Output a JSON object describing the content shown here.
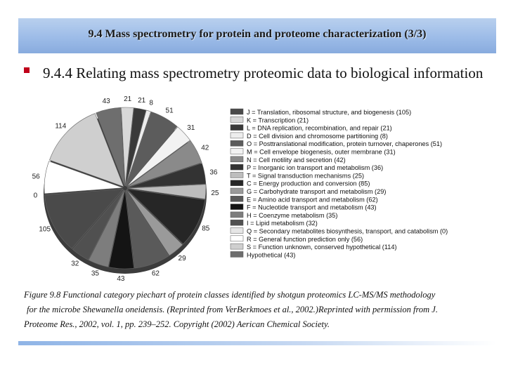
{
  "slide": {
    "title": "9.4 Mass spectrometry for  protein and proteome characterization (3/3)",
    "bullet": "9.4.4 Relating mass spectrometry proteomic data to biological information",
    "caption": {
      "line1": "Figure 9.8 Functional category piechart of protein classes identified by shotgun proteomics LC-MS/MS methodology",
      "line2": "for the microbe Shewanella oneidensis. (Reprinted from VerBerkmoes et al., 2002.)Reprinted with permission from J.",
      "line3": "Proteome Res., 2002, vol. 1, pp. 239–252. Copyright (2002) Aerican  Chemical Society."
    },
    "accent_color": "#c0001a"
  },
  "chart_data": {
    "type": "pie",
    "title": "",
    "legend_position": "right",
    "slices": [
      {
        "label": "J = Translation, ribosomal structure, and biogenesis (105)",
        "value": 105,
        "color": "#4a4a4a"
      },
      {
        "label": "K = Transcription (21)",
        "value": 21,
        "color": "#d8d8d8"
      },
      {
        "label": "L = DNA replication, recombination, and repair (21)",
        "value": 21,
        "color": "#3a3a3a"
      },
      {
        "label": "D = Cell division and chromosome partitioning (8)",
        "value": 8,
        "color": "#ededed"
      },
      {
        "label": "O = Posttranslational modification, protein turnover, chaperones (51)",
        "value": 51,
        "color": "#5c5c5c"
      },
      {
        "label": "M = Cell envelope biogenesis, outer membrane (31)",
        "value": 31,
        "color": "#f2f2f2"
      },
      {
        "label": "N = Cell motility and secretion (42)",
        "value": 42,
        "color": "#8a8a8a"
      },
      {
        "label": "P = Inorganic ion transport and metabolism (36)",
        "value": 36,
        "color": "#333333"
      },
      {
        "label": "T = Signal transduction mechanisms (25)",
        "value": 25,
        "color": "#bdbdbd"
      },
      {
        "label": "C = Energy production and conversion (85)",
        "value": 85,
        "color": "#262626"
      },
      {
        "label": "G = Carbohydrate transport and metabolism (29)",
        "value": 29,
        "color": "#9a9a9a"
      },
      {
        "label": "E = Amino acid transport and metabolism (62)",
        "value": 62,
        "color": "#5a5a5a"
      },
      {
        "label": "F = Nucleotide transport and metabolism (43)",
        "value": 43,
        "color": "#141414"
      },
      {
        "label": "H = Coenzyme metabolism (35)",
        "value": 35,
        "color": "#7d7d7d"
      },
      {
        "label": "I = Lipid metabolism (32)",
        "value": 32,
        "color": "#505050"
      },
      {
        "label": "Q = Secondary metabolites biosynthesis, transport, and catabolism (0)",
        "value": 0,
        "color": "#e6e6e6"
      },
      {
        "label": "R = General function prediction only (56)",
        "value": 56,
        "color": "#ffffff"
      },
      {
        "label": "S = Function unknown, conserved hypothetical (114)",
        "value": 114,
        "color": "#cfcfcf"
      },
      {
        "label": "Hypothetical (43)",
        "value": 43,
        "color": "#6e6e6e"
      }
    ],
    "pie_order": [
      "K",
      "L",
      "D",
      "O",
      "M",
      "N",
      "P",
      "T",
      "C",
      "G",
      "E",
      "F",
      "H",
      "I",
      "J",
      "Q",
      "R",
      "S",
      "Hyp"
    ],
    "pie_values": [
      21,
      21,
      8,
      51,
      31,
      42,
      36,
      25,
      85,
      29,
      62,
      43,
      35,
      32,
      105,
      0,
      56,
      114,
      43
    ],
    "pie_colors": [
      "#d8d8d8",
      "#3a3a3a",
      "#ededed",
      "#5c5c5c",
      "#f2f2f2",
      "#8a8a8a",
      "#333333",
      "#bdbdbd",
      "#262626",
      "#9a9a9a",
      "#5a5a5a",
      "#141414",
      "#7d7d7d",
      "#505050",
      "#4a4a4a",
      "#e6e6e6",
      "#ffffff",
      "#cfcfcf",
      "#6e6e6e"
    ]
  }
}
